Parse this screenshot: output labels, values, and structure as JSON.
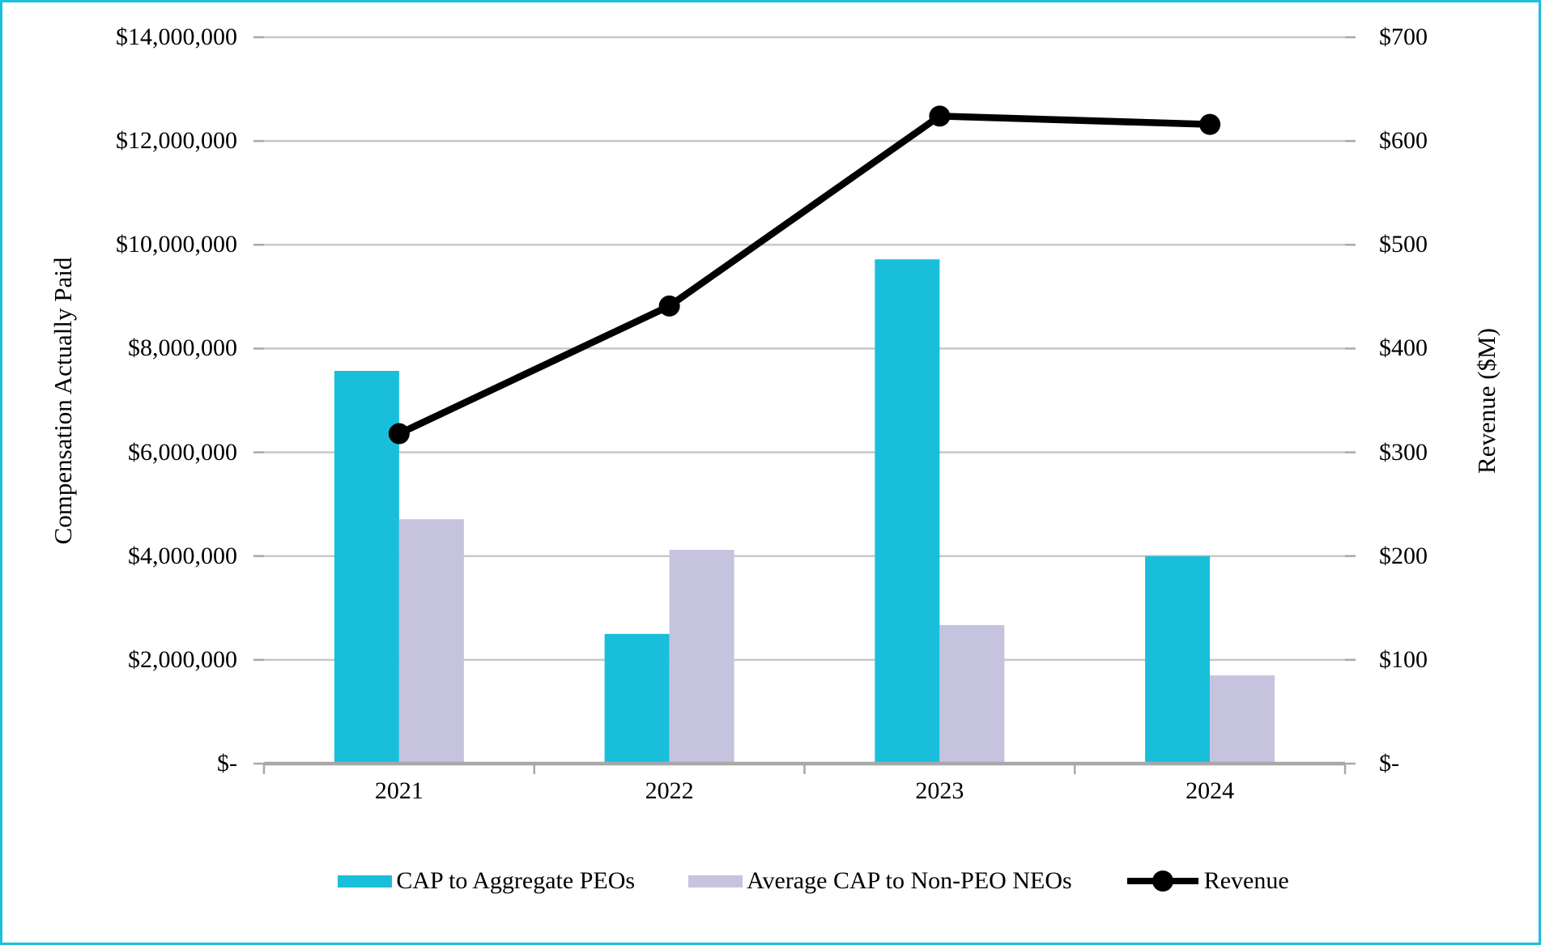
{
  "chart_data": {
    "type": "bar",
    "subtype": "grouped-bars-with-line-overlay",
    "title": "",
    "categories": [
      "2021",
      "2022",
      "2023",
      "2024"
    ],
    "series": [
      {
        "name": "CAP to Aggregate PEOs",
        "type": "bar",
        "axis": "left",
        "color": "#19BFDA",
        "values": [
          7570000,
          2500000,
          9720000,
          4000000
        ]
      },
      {
        "name": "Average CAP to Non-PEO NEOs",
        "type": "bar",
        "axis": "left",
        "color": "#C6C3DE",
        "values": [
          4710000,
          4120000,
          2670000,
          1700000
        ]
      },
      {
        "name": "Revenue",
        "type": "line",
        "axis": "right",
        "color": "#000000",
        "marker": "circle",
        "values": [
          318,
          441,
          624,
          616
        ]
      }
    ],
    "left_axis": {
      "title": "Compensation Actually Paid",
      "min": 0,
      "max": 14000000,
      "step": 2000000,
      "tick_labels": [
        "$-",
        "$2,000,000",
        "$4,000,000",
        "$6,000,000",
        "$8,000,000",
        "$10,000,000",
        "$12,000,000",
        "$14,000,000"
      ]
    },
    "right_axis": {
      "title": "Revenue ($M)",
      "min": 0,
      "max": 700,
      "step": 100,
      "tick_labels": [
        "$-",
        "$100",
        "$200",
        "$300",
        "$400",
        "$500",
        "$600",
        "$700"
      ]
    },
    "grid": true,
    "legend_position": "bottom"
  },
  "legend": {
    "items": [
      {
        "label": "CAP to Aggregate PEOs",
        "swatch": "bar",
        "color": "#19BFDA"
      },
      {
        "label": "Average CAP to Non-PEO NEOs",
        "swatch": "bar",
        "color": "#C6C3DE"
      },
      {
        "label": "Revenue",
        "swatch": "line-marker",
        "color": "#000000"
      }
    ]
  },
  "colors": {
    "frame_border": "#1CBFDE",
    "gridline": "#C8C8C8",
    "axis_line": "#A8A8A8",
    "background": "#FFFFFF"
  }
}
